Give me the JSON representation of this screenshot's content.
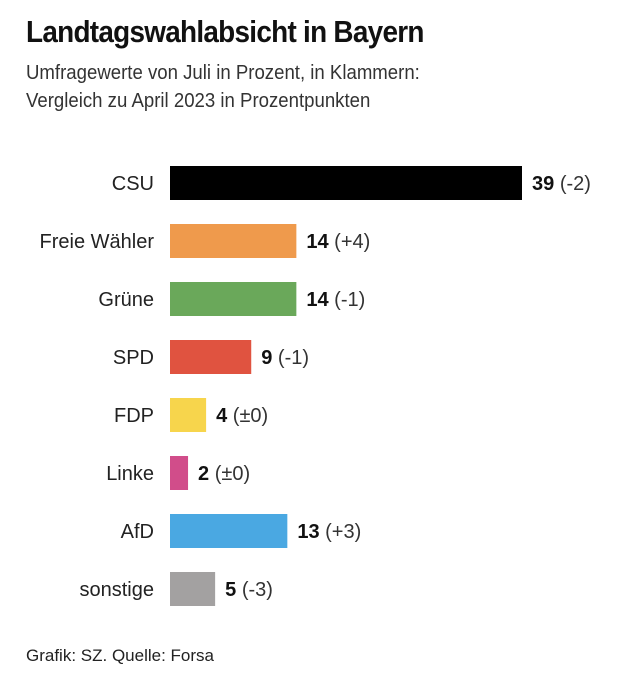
{
  "chart_data": {
    "type": "bar",
    "orientation": "horizontal",
    "title": "Landtagswahlabsicht in Bayern",
    "subtitle": [
      "Umfragewerte von Juli in Prozent, in Klammern:",
      "Vergleich zu April 2023 in Prozentpunkten"
    ],
    "categories": [
      "CSU",
      "Freie Wähler",
      "Grüne",
      "SPD",
      "FDP",
      "Linke",
      "AfD",
      "sonstige"
    ],
    "values": [
      39,
      14,
      14,
      9,
      4,
      2,
      13,
      5
    ],
    "changes": [
      "(-2)",
      "(+4)",
      "(-1)",
      "(-1)",
      "(±0)",
      "(±0)",
      "(+3)",
      "(-3)"
    ],
    "colors": [
      "#000000",
      "#ef9a4c",
      "#6aa85a",
      "#e05340",
      "#f7d54c",
      "#d14d8a",
      "#4aa8e2",
      "#a3a1a1"
    ],
    "xlim": [
      0,
      39
    ],
    "grid": false,
    "legend": "none"
  },
  "source": "Grafik: SZ. Quelle: Forsa"
}
